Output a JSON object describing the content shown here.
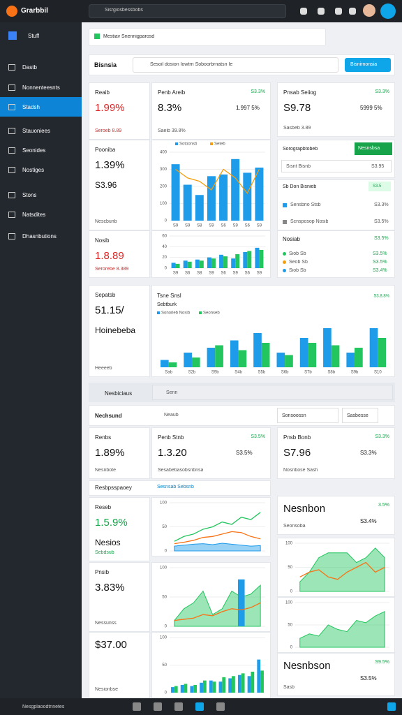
{
  "topbar": {
    "brand": "Grarbbil",
    "search": "Sisrgiosbessbobs"
  },
  "sidebar": {
    "head": "Stuff",
    "items": [
      "Dastb",
      "Nonnenteesnts",
      "Stadsh",
      "Stauoniees",
      "Seonides",
      "Nostiges",
      "Stons",
      "Natsdites",
      "Dhasnbutions"
    ]
  },
  "notice": "Mestiav Snennigparosd",
  "header": {
    "title": "Bisnsia",
    "search": "Sesoil dosion Iowtrn Soboorbrnatsn Ie",
    "button": "Bisnirnonsia"
  },
  "cards": [
    {
      "title": "Reaib",
      "value": "1.99%",
      "note": "Seroeb 8.89"
    },
    {
      "title": "Penb Areib",
      "right": "S3.3%",
      "value": "8.3%",
      "value2": "1.997 5%",
      "note": "Saeib 39.8%"
    },
    {
      "title": "Pooniba",
      "value": "1.39%",
      "value2": "S3.96",
      "note": "Nescbunb"
    },
    {
      "title": "Nosib",
      "value": "1.8.89",
      "note": "Serorebe 8.389"
    },
    {
      "title": "Pnsab Seiiog",
      "right": "S3.3%",
      "value": "S9.78",
      "value2": "5999 5%",
      "note": "Sasbeb 3.89"
    },
    {
      "title": "Sepatsb",
      "value": "51.15/",
      "note": "Heeeeb",
      "value2": "Hoinebeba"
    },
    {
      "title": "Renbs",
      "value": "1.89%",
      "note": "Nesnbote"
    },
    {
      "title": "Penb Stnb",
      "right": "S3.5%",
      "value": "1.3.20",
      "value2": "S3.5%",
      "note": "Sesabebasobsnbnsa"
    },
    {
      "title": "Pnsb Bonb",
      "right": "S3.3%",
      "value": "S7.96",
      "value2": "S3.3%",
      "note": "Nosnbose Sash"
    },
    {
      "title": "Reseb",
      "value": "1.5.9%",
      "note": "Sebdsub",
      "value2": "Nesios"
    },
    {
      "title": "Pnsib",
      "value": "3.83%",
      "note": "Nessunss"
    },
    {
      "title": "$37.00",
      "note": "Nesionbse"
    },
    {
      "title": "Nesnbon",
      "right": "3.5%",
      "note": "Seonsoba",
      "value2": "S3.4%"
    },
    {
      "title": "Nesnbson",
      "right": "S9.5%",
      "note": "Sasb",
      "value2": "S3.5%"
    }
  ],
  "panel": {
    "title": "Sorograpbtobeb",
    "button": "Nesnsbsa",
    "input": "Sisnt Bisnb",
    "input_value": "S3.95"
  },
  "list": {
    "title": "Sb Don Bisnieb",
    "badge": "S3.5",
    "rows": [
      {
        "label": "Sensbrio Stsb",
        "value": "S3.3%"
      },
      {
        "label": "Scnsposop Nosib",
        "value": "S3.5%"
      }
    ]
  },
  "legend_card": {
    "title": "Nosiab",
    "right": "S3.5%",
    "rows": [
      {
        "label": "Siob Sb",
        "value": "S3.5%"
      },
      {
        "label": "Seob Sb",
        "value": "S3.5%"
      },
      {
        "label": "Siob Sb",
        "value": "S3.4%"
      }
    ]
  },
  "section": {
    "title": "Nesbiciaus",
    "search": "Senn",
    "toolbar_title": "Nechsund",
    "filter": "Neaub",
    "buttons": [
      "Sonsoossn",
      "Sasbesse"
    ],
    "tab": "Resbpsspaoey",
    "tab2": "Sesnsab Sebsnb"
  },
  "footer": "Nesgplaoodtnnetes",
  "charts": [
    {
      "type": "combo",
      "ylim": [
        0,
        400
      ],
      "yticks": [
        0,
        100,
        200,
        300,
        400
      ],
      "categories": [
        "S9",
        "S9",
        "S8",
        "S9",
        "S6",
        "S9",
        "S6",
        "S9"
      ],
      "series": [
        {
          "name": "Sotoonsb",
          "color": "#1e9be9",
          "values": [
            330,
            210,
            150,
            260,
            270,
            360,
            280,
            310
          ]
        },
        {
          "name": "Seteb",
          "color": "#f59e0b",
          "kind": "line",
          "values": [
            300,
            250,
            230,
            180,
            300,
            250,
            160,
            300
          ]
        }
      ]
    },
    {
      "type": "bar",
      "ylim": [
        0,
        60
      ],
      "yticks": [
        0,
        20,
        40,
        60
      ],
      "categories": [
        "S9",
        "S6",
        "S8",
        "S9",
        "S6",
        "S9",
        "S6",
        "S9"
      ],
      "series": [
        {
          "color": "#1e9be9",
          "values": [
            10,
            14,
            16,
            20,
            25,
            18,
            30,
            38
          ]
        },
        {
          "color": "#22c55e",
          "values": [
            8,
            12,
            14,
            18,
            22,
            26,
            32,
            34
          ]
        }
      ]
    },
    {
      "type": "bar",
      "title": "Tsne Snsl",
      "subtitle": "Sebtburk",
      "right": "S3.8.8%",
      "ylim": [
        0,
        100
      ],
      "categories": [
        "Sab",
        "S2b",
        "S9b",
        "S4b",
        "S5b",
        "S6b",
        "S7b",
        "S8b",
        "S9b",
        "S10"
      ],
      "series": [
        {
          "name": "Sonorieb Nosib",
          "color": "#1e9be9",
          "values": [
            15,
            30,
            40,
            55,
            70,
            30,
            60,
            80,
            30,
            80
          ]
        },
        {
          "name": "Seonseb",
          "color": "#22c55e",
          "values": [
            10,
            20,
            45,
            35,
            50,
            25,
            50,
            45,
            40,
            60
          ]
        }
      ]
    },
    {
      "type": "line",
      "ylim": [
        0,
        100
      ],
      "yticks": [
        0,
        50,
        100
      ],
      "series": [
        {
          "color": "#1e9be9",
          "kind": "area",
          "values": [
            10,
            12,
            14,
            15,
            13,
            16,
            14,
            12,
            10,
            11
          ]
        },
        {
          "color": "#22c55e",
          "values": [
            20,
            30,
            35,
            45,
            50,
            60,
            55,
            70,
            65,
            80
          ]
        },
        {
          "color": "#f97316",
          "values": [
            15,
            18,
            22,
            28,
            30,
            35,
            40,
            38,
            30,
            25
          ]
        }
      ]
    },
    {
      "type": "line",
      "ylim": [
        0,
        100
      ],
      "yticks": [
        0,
        50,
        100
      ],
      "series": [
        {
          "color": "#22c55e",
          "kind": "area",
          "values": [
            10,
            30,
            40,
            60,
            20,
            30,
            60,
            50,
            55,
            70
          ]
        },
        {
          "color": "#1e9be9",
          "kind": "bar",
          "values": [
            0,
            0,
            0,
            0,
            0,
            0,
            0,
            80,
            0,
            0
          ]
        },
        {
          "color": "#f97316",
          "values": [
            10,
            12,
            14,
            20,
            18,
            25,
            30,
            28,
            32,
            40
          ]
        }
      ]
    },
    {
      "type": "bar",
      "ylim": [
        0,
        100
      ],
      "yticks": [
        0,
        50,
        100
      ],
      "series": [
        {
          "color": "#1e9be9",
          "values": [
            10,
            14,
            12,
            18,
            22,
            20,
            26,
            32,
            30,
            60
          ]
        },
        {
          "color": "#22c55e",
          "values": [
            12,
            16,
            14,
            22,
            20,
            28,
            30,
            35,
            38,
            40
          ]
        }
      ]
    },
    {
      "type": "line",
      "ylim": [
        0,
        100
      ],
      "yticks": [
        0,
        50,
        100
      ],
      "series": [
        {
          "color": "#22c55e",
          "kind": "area",
          "values": [
            20,
            40,
            70,
            80,
            80,
            80,
            60,
            70,
            90,
            70
          ]
        },
        {
          "color": "#f97316",
          "values": [
            30,
            40,
            45,
            30,
            25,
            40,
            50,
            60,
            40,
            50
          ]
        }
      ]
    },
    {
      "type": "line",
      "ylim": [
        0,
        100
      ],
      "yticks": [
        0,
        50,
        100
      ],
      "series": [
        {
          "color": "#22c55e",
          "kind": "area",
          "values": [
            20,
            30,
            25,
            50,
            40,
            35,
            60,
            55,
            70,
            80
          ]
        }
      ]
    }
  ]
}
